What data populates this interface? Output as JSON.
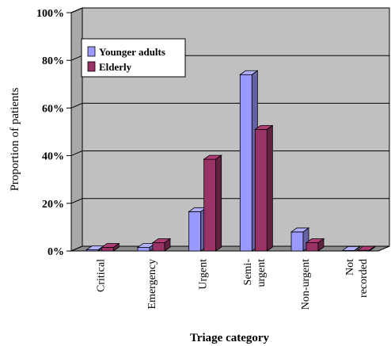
{
  "chart_data": {
    "type": "bar",
    "xlabel": "Triage category",
    "ylabel": "Proportion of patients",
    "ylim": [
      0,
      100
    ],
    "yticks": [
      "0%",
      "20%",
      "40%",
      "60%",
      "80%",
      "100%"
    ],
    "categories": [
      [
        "Critical"
      ],
      [
        "Emergency"
      ],
      [
        "Urgent"
      ],
      [
        "Semi-",
        "urgent"
      ],
      [
        "Non-urgent"
      ],
      [
        "Not",
        "recorded"
      ]
    ],
    "series": [
      {
        "name": "Younger adults",
        "color": "#9999ff",
        "values": [
          0.5,
          1.5,
          16.5,
          74,
          8,
          0.2
        ]
      },
      {
        "name": "Elderly",
        "color": "#993366",
        "values": [
          1.5,
          3.5,
          38.5,
          51,
          3.5,
          0.3
        ]
      }
    ],
    "legend": "top-left",
    "grid": true,
    "style_3d": true
  }
}
